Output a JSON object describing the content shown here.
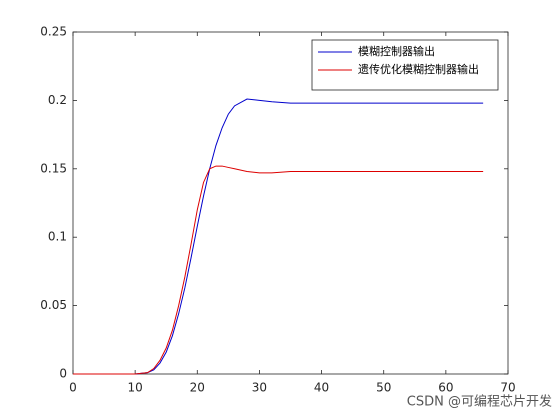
{
  "chart_data": {
    "type": "line",
    "x": [
      0,
      5,
      10,
      12,
      13,
      14,
      15,
      16,
      17,
      18,
      19,
      20,
      21,
      22,
      23,
      24,
      25,
      26,
      28,
      30,
      32,
      35,
      40,
      50,
      60,
      66
    ],
    "series": [
      {
        "name": "模糊控制器输出",
        "color": "#0000cc",
        "values": [
          0,
          0,
          0,
          0.001,
          0.003,
          0.008,
          0.016,
          0.028,
          0.044,
          0.063,
          0.085,
          0.108,
          0.13,
          0.15,
          0.167,
          0.18,
          0.19,
          0.196,
          0.201,
          0.2,
          0.199,
          0.198,
          0.198,
          0.198,
          0.198,
          0.198
        ]
      },
      {
        "name": "遗传优化模糊控制器输出",
        "color": "#dd0000",
        "values": [
          0,
          0,
          0,
          0.001,
          0.004,
          0.01,
          0.019,
          0.032,
          0.05,
          0.071,
          0.095,
          0.12,
          0.14,
          0.15,
          0.152,
          0.152,
          0.151,
          0.15,
          0.148,
          0.147,
          0.147,
          0.148,
          0.148,
          0.148,
          0.148,
          0.148
        ]
      }
    ],
    "xlim": [
      0,
      70
    ],
    "xticks": [
      0,
      10,
      20,
      30,
      40,
      50,
      60,
      70
    ],
    "ylim": [
      0,
      0.25
    ],
    "yticks": [
      0,
      0.05,
      0.1,
      0.15,
      0.2,
      0.25
    ],
    "legend": "upper right",
    "watermark": "CSDN @可编程芯片开发"
  }
}
